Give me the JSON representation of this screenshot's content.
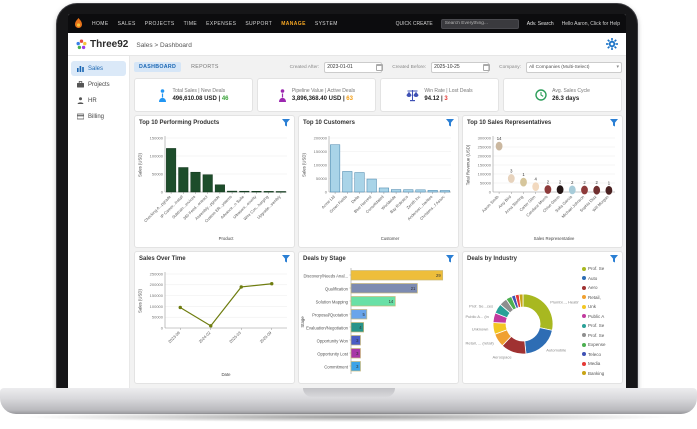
{
  "topnav": {
    "menu": [
      "HOME",
      "SALES",
      "PROJECTS",
      "TIME",
      "EXPENSES",
      "SUPPORT",
      "MANAGE",
      "SYSTEM"
    ],
    "active": "MANAGE",
    "quick_create": "QUICK CREATE",
    "search_placeholder": "Search Everything...",
    "adv_search": "Adv. Search",
    "greeting": "Hello Aaron, Click for Help"
  },
  "header": {
    "brand": "Three92",
    "breadcrumb": "Sales > Dashboard"
  },
  "sidebar": {
    "items": [
      {
        "label": "Sales",
        "active": true
      },
      {
        "label": "Projects",
        "active": false
      },
      {
        "label": "HR",
        "active": false
      },
      {
        "label": "Billing",
        "active": false
      }
    ]
  },
  "tabs": {
    "dashboard": "DASHBOARD",
    "reports": "REPORTS"
  },
  "filters": {
    "created_after_label": "Created After:",
    "created_after": "2023-01-01",
    "created_before_label": "Created Before:",
    "created_before": "2025-10-25",
    "company_label": "Company:",
    "company": "All Companies (Multi-Select)"
  },
  "kpis": [
    {
      "label": "Total Sales | New Deals",
      "value": "496,610.08 USD",
      "count": "46",
      "count_color": "#3aa33a",
      "icon": "sales-person-icon",
      "icon_color": "#2196f3"
    },
    {
      "label": "Pipeline Value | Active Deals",
      "value": "3,896,368.40 USD",
      "count": "63",
      "count_color": "#f39c12",
      "icon": "pipeline-person-icon",
      "icon_color": "#9c27b0"
    },
    {
      "label": "Win Rate | Lost Deals",
      "value": "94.12",
      "count": "3",
      "count_color": "#e53935",
      "icon": "scales-icon",
      "icon_color": "#3f51b5"
    },
    {
      "label": "Avg. Sales Cycle",
      "value": "26.3 days",
      "count": "",
      "count_color": "#3aa33a",
      "icon": "clock-icon",
      "icon_color": "#2e9e5b"
    }
  ],
  "chart_data": [
    {
      "type": "bar",
      "title": "Top 10 Performing Products",
      "categories": [
        "Checking A...pgrade",
        "IP Camer...install",
        "Subtrain...ervices",
        "360 Feed...ontract",
        "Assembly...pgrade",
        "Custom ER...ystems",
        "Advance...n Suite",
        "Ultrasoni...ecurity",
        "Wire Con...harging",
        "Upgrade...sembly"
      ],
      "values": [
        121000,
        68000,
        55000,
        48000,
        20000,
        2500,
        2200,
        2000,
        1800,
        1500
      ],
      "xlabel": "Product",
      "ylabel": "Sales (USD)",
      "ylim": [
        0,
        150000
      ],
      "yticks": [
        0,
        50000,
        100000,
        150000
      ],
      "bar_color": "#1d4d2b",
      "bar_border": "#0f3319"
    },
    {
      "type": "bar",
      "title": "Top 10 Customers",
      "categories": [
        "Acme Ltd",
        "Green Fields",
        "Delta",
        "Blue Harvest",
        "Consolidated",
        "Worldwide",
        "Bay Robotics",
        "Zenith Inc",
        "Anderson...harities",
        "Christens...f Assoc"
      ],
      "values": [
        175000,
        76000,
        72000,
        48000,
        15000,
        9000,
        8500,
        8000,
        6000,
        5500
      ],
      "xlabel": "Customer",
      "ylabel": "Sales (USD)",
      "ylim": [
        0,
        200000
      ],
      "yticks": [
        0,
        50000,
        100000,
        150000,
        200000
      ],
      "bar_color": "#a9d4e8",
      "bar_border": "#3f7fa8"
    },
    {
      "type": "scatter",
      "title": "Top 10 Sales Representatives",
      "categories": [
        "Aaron Smith",
        "Amy Bird",
        "Anna Sterling",
        "Carter Glen",
        "Candace Morris",
        "Chloe Glenn",
        "Sofia Garcia",
        "Michael Johnson",
        "Sophia Diaz",
        "Will Morgan"
      ],
      "values": [
        255000,
        75000,
        55000,
        30000,
        14000,
        13000,
        12000,
        11000,
        10000,
        9000
      ],
      "point_labels": [
        "14",
        "3",
        "1",
        "4",
        "2",
        "2",
        "2",
        "2",
        "2",
        "1"
      ],
      "point_colors": [
        "#cbb8a0",
        "#e7d3bd",
        "#d6c69c",
        "#f2d9bf",
        "#8e3b3b",
        "#241616",
        "#a8ccd9",
        "#8e3b3b",
        "#713030",
        "#4a2121"
      ],
      "xlabel": "Sales Representative",
      "ylabel": "Total Revenue (USD)",
      "ylim": [
        0,
        300000
      ],
      "yticks": [
        0,
        50000,
        100000,
        150000,
        200000,
        250000,
        300000
      ]
    },
    {
      "type": "line",
      "title": "Sales Over Time",
      "categories": [
        "2023-09",
        "2024-02",
        "2025-03",
        "2025-09"
      ],
      "values": [
        95000,
        10000,
        190000,
        205000
      ],
      "xlabel": "Date",
      "ylabel": "Sales (USD)",
      "ylim": [
        0,
        250000
      ],
      "yticks": [
        0,
        50000,
        100000,
        150000,
        200000,
        250000
      ],
      "line_color": "#6f7d10"
    },
    {
      "type": "hbar",
      "title": "Deals by Stage",
      "categories": [
        "Discovery/Needs Anal...",
        "Qualification",
        "Solution Mapping",
        "Proposal/Quotation",
        "Evaluation/Negotiation",
        "Opportunity Won",
        "Opportunity Lost",
        "Commitment"
      ],
      "values": [
        29,
        21,
        14,
        5,
        4,
        3,
        3,
        3
      ],
      "bar_colors": [
        "#eebe3b",
        "#7d8bb1",
        "#69e0a6",
        "#6aa5ea",
        "#27948a",
        "#4a5cc5",
        "#a836a8",
        "#3da4e8"
      ],
      "bar_border": "#c9b97a",
      "ylabel": "Stage",
      "xlim": [
        0,
        31
      ]
    },
    {
      "type": "donut",
      "title": "Deals by Industry",
      "slices": [
        {
          "label": "Prof. Se",
          "value": 27,
          "color": "#a8b820",
          "callout": "Plumbi..., Heating)"
        },
        {
          "label": "Auto",
          "value": 19,
          "color": "#2e6db4",
          "callout": "Automobile"
        },
        {
          "label": "Aero",
          "value": 13,
          "color": "#a03232",
          "callout": "Aerospace"
        },
        {
          "label": "Retail,",
          "value": 7,
          "color": "#f0a030",
          "callout": "Retail, ... (retail)"
        },
        {
          "label": "Unk",
          "value": 6,
          "color": "#f3c623",
          "callout": "Unknown"
        },
        {
          "label": "Public A",
          "value": 5,
          "color": "#c23a9e",
          "callout": "Public A... (in"
        },
        {
          "label": "Prof. Se",
          "value": 5,
          "color": "#2aa198",
          "callout": "Prof. Se...ces"
        },
        {
          "label": "Prof. Se",
          "value": 4,
          "color": "#8e8e8e",
          "callout": ""
        },
        {
          "label": "Expense",
          "value": 3,
          "color": "#4caf50",
          "callout": ""
        },
        {
          "label": "Teleco",
          "value": 2,
          "color": "#3f51b5",
          "callout": ""
        },
        {
          "label": "Media",
          "value": 2,
          "color": "#e53935",
          "callout": ""
        },
        {
          "label": "Banking",
          "value": 2,
          "color": "#c8a415",
          "callout": ""
        }
      ]
    }
  ]
}
